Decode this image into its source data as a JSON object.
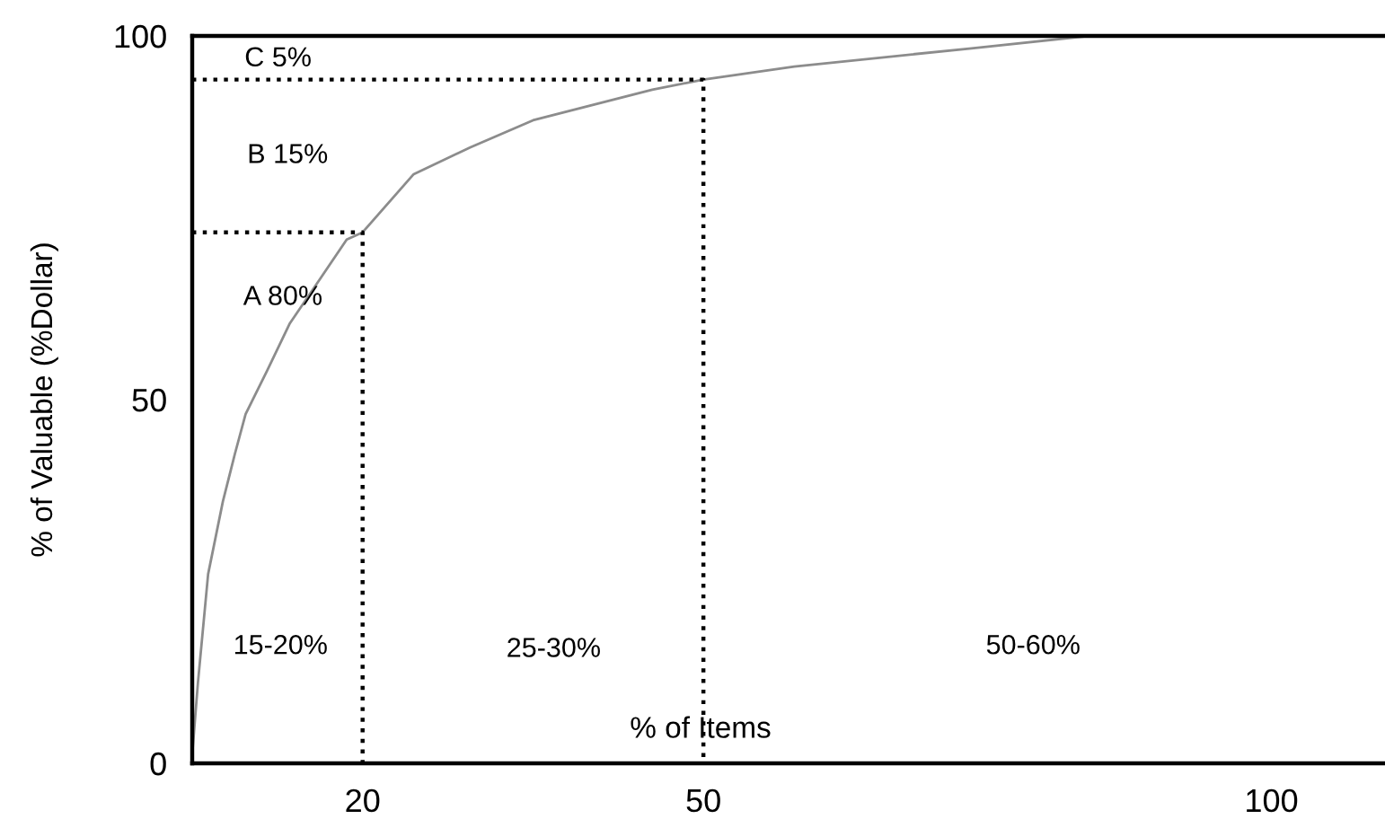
{
  "chart_data": {
    "type": "line",
    "xlabel": "% of Items",
    "ylabel": "% of Valuable (%Dollar)",
    "series": [
      {
        "color": "#8c8c8c",
        "line_style": "solid",
        "x": [
          5,
          5.5,
          6.4,
          7.7,
          8.75,
          9.7,
          11.6,
          13.6,
          16.3,
          18.6,
          20,
          24.5,
          29.5,
          35,
          45.5,
          50,
          58,
          73.6,
          83.9,
          110
        ],
        "values": [
          1.2,
          11,
          26,
          36,
          42.5,
          48,
          54,
          60.5,
          66.7,
          72,
          73,
          81,
          84.7,
          88.4,
          92.6,
          94,
          95.8,
          98.3,
          100,
          100
        ]
      },
      {
        "color": "#000000",
        "line_style": "dotted",
        "x": [
          5,
          20,
          20
        ],
        "values": [
          73,
          73,
          0
        ]
      },
      {
        "color": "#000000",
        "line_style": "dotted",
        "x": [
          5,
          50,
          50
        ],
        "values": [
          94,
          94,
          0
        ]
      }
    ],
    "xlim": [
      5,
      110
    ],
    "ylim": [
      0,
      100
    ],
    "xticks": [
      20,
      50,
      100
    ],
    "yticks": [
      0,
      50,
      100
    ],
    "grid": false,
    "legend": false,
    "marker": "none",
    "annotations": [
      "C 5%",
      "B 15%",
      "A 80%",
      "15-20%",
      "25-30%",
      "50-60%"
    ]
  }
}
